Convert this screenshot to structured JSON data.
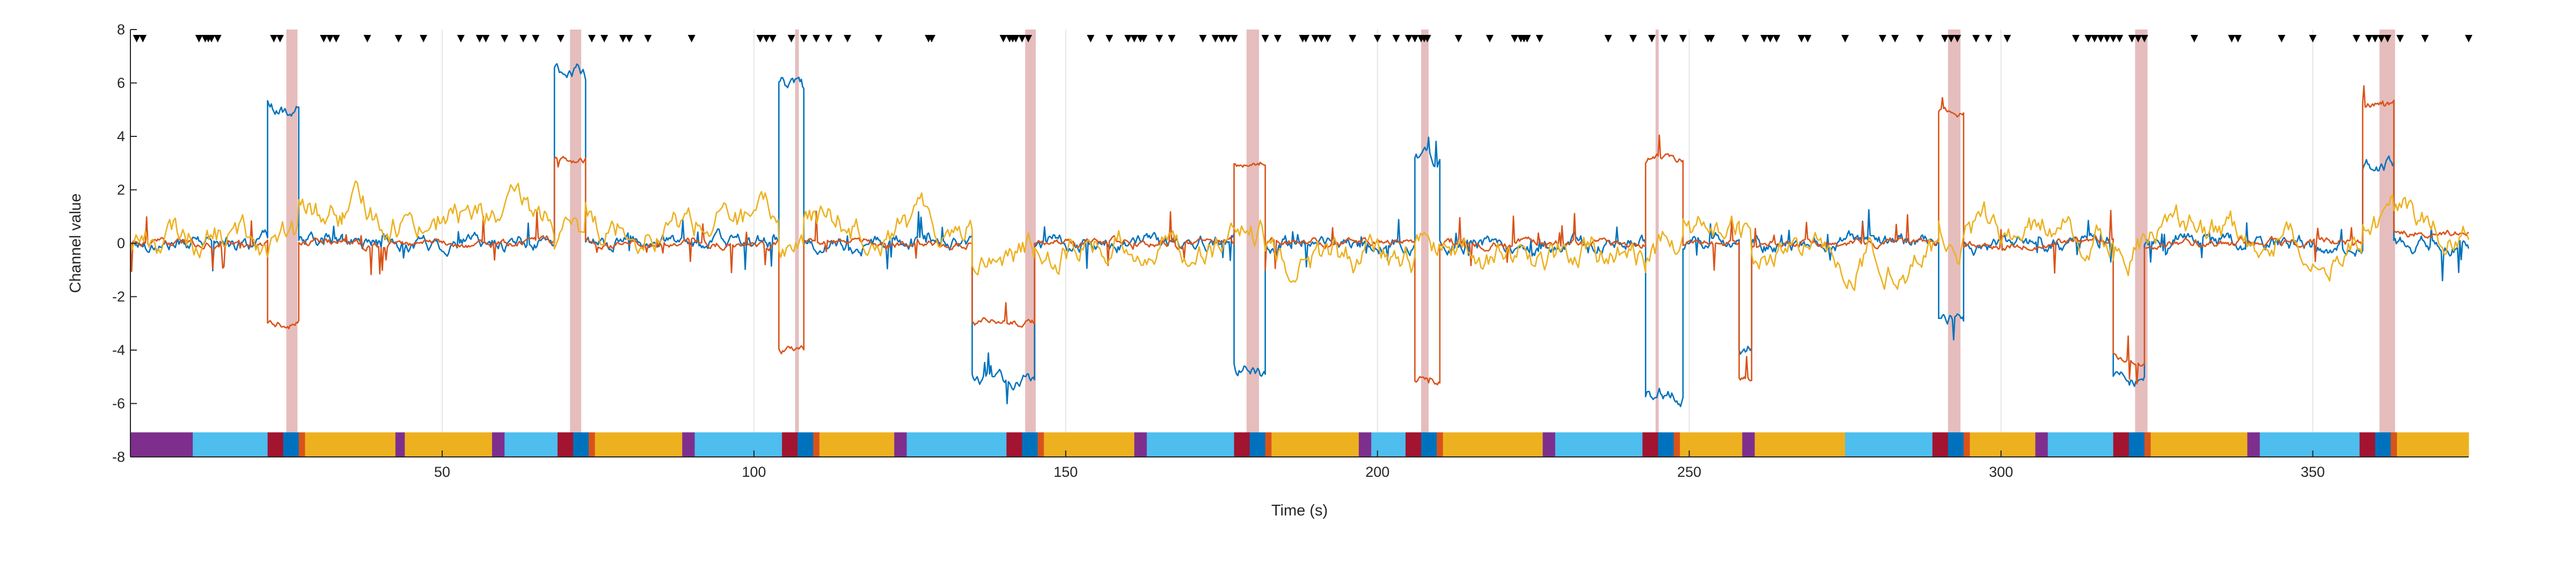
{
  "chart_data": {
    "type": "line",
    "title": "",
    "xlabel": "Time (s)",
    "ylabel": "Channel value",
    "xlim": [
      0,
      375
    ],
    "ylim": [
      -8,
      8
    ],
    "x_ticks": [
      50,
      100,
      150,
      200,
      250,
      300,
      350
    ],
    "y_ticks": [
      -8,
      -6,
      -4,
      -2,
      0,
      2,
      4,
      6,
      8
    ],
    "grid": "vertical lines at x ticks",
    "legend": "none",
    "colors": {
      "channel_1": "#0072BD",
      "channel_2": "#D95319",
      "channel_3": "#EDB120",
      "event_band": "#E2B2B2",
      "marker": "#000000"
    },
    "series": [
      {
        "color_key": "channel_1",
        "noise": 0.22,
        "segments": [
          [
            0,
            22,
            0
          ],
          [
            22,
            27,
            5
          ],
          [
            27,
            34,
            0
          ],
          [
            34,
            68,
            0
          ],
          [
            68,
            73,
            6.4
          ],
          [
            73,
            104,
            0
          ],
          [
            104,
            108,
            5.9
          ],
          [
            108,
            135,
            0
          ],
          [
            135,
            145,
            -5
          ],
          [
            145,
            177,
            0
          ],
          [
            177,
            182,
            -4.9
          ],
          [
            182,
            206,
            0
          ],
          [
            206,
            210,
            3.1
          ],
          [
            210,
            243,
            0
          ],
          [
            243,
            249,
            -5.6
          ],
          [
            249,
            258,
            0
          ],
          [
            258,
            260,
            -4
          ],
          [
            260,
            290,
            0
          ],
          [
            290,
            294,
            -2.9
          ],
          [
            294,
            318,
            0
          ],
          [
            318,
            323,
            -5.1
          ],
          [
            323,
            358,
            0
          ],
          [
            358,
            363,
            3
          ],
          [
            363,
            375,
            0
          ]
        ]
      },
      {
        "color_key": "channel_2",
        "noise": 0.12,
        "segments": [
          [
            0,
            22,
            0
          ],
          [
            22,
            27,
            -3
          ],
          [
            27,
            34,
            0
          ],
          [
            34,
            68,
            0
          ],
          [
            68,
            73,
            3.1
          ],
          [
            73,
            104,
            0
          ],
          [
            104,
            108,
            -4
          ],
          [
            108,
            135,
            0
          ],
          [
            135,
            145,
            -3
          ],
          [
            145,
            177,
            0
          ],
          [
            177,
            182,
            3
          ],
          [
            182,
            206,
            0
          ],
          [
            206,
            210,
            -5.1
          ],
          [
            210,
            243,
            0
          ],
          [
            243,
            249,
            3.2
          ],
          [
            249,
            258,
            0
          ],
          [
            258,
            260,
            -5
          ],
          [
            260,
            290,
            0
          ],
          [
            290,
            294,
            5
          ],
          [
            294,
            318,
            0
          ],
          [
            318,
            323,
            -4.3
          ],
          [
            323,
            358,
            0
          ],
          [
            358,
            363,
            5.2
          ],
          [
            363,
            375,
            0.4
          ]
        ]
      },
      {
        "color_key": "channel_3",
        "noise": 0.7,
        "segments": [
          [
            0,
            22,
            0.2
          ],
          [
            22,
            27,
            0
          ],
          [
            27,
            34,
            1
          ],
          [
            34,
            68,
            1
          ],
          [
            68,
            73,
            0
          ],
          [
            73,
            104,
            0.8
          ],
          [
            104,
            108,
            0
          ],
          [
            108,
            135,
            0.8
          ],
          [
            135,
            145,
            -0.3
          ],
          [
            145,
            177,
            0
          ],
          [
            177,
            182,
            0
          ],
          [
            182,
            206,
            -0.6
          ],
          [
            206,
            210,
            0
          ],
          [
            210,
            243,
            -0.5
          ],
          [
            243,
            249,
            0
          ],
          [
            249,
            258,
            0.3
          ],
          [
            258,
            260,
            0
          ],
          [
            260,
            290,
            -0.5
          ],
          [
            290,
            294,
            0
          ],
          [
            294,
            318,
            0.5
          ],
          [
            318,
            323,
            0
          ],
          [
            323,
            358,
            0.3
          ],
          [
            358,
            363,
            1
          ],
          [
            363,
            375,
            0.9
          ]
        ]
      }
    ],
    "event_bands": [
      [
        25,
        26.8
      ],
      [
        70.5,
        72.3
      ],
      [
        106.6,
        107.2
      ],
      [
        143.5,
        145.2
      ],
      [
        179,
        181
      ],
      [
        207,
        208.2
      ],
      [
        244.6,
        245.1
      ],
      [
        291.5,
        293.5
      ],
      [
        321.5,
        323.5
      ],
      [
        360.7,
        363.2
      ]
    ],
    "markers_x": [
      1,
      2,
      11,
      12,
      12.5,
      13,
      14,
      23,
      24,
      31,
      32,
      33,
      38,
      43,
      47,
      53,
      56,
      57,
      60,
      63,
      65,
      69,
      74,
      76,
      79,
      80,
      83,
      90,
      101,
      102,
      103,
      106,
      108,
      110,
      112,
      115,
      120,
      128,
      128.5,
      140,
      141,
      141.5,
      142,
      143,
      144,
      154,
      157,
      160,
      161,
      162,
      162.5,
      165,
      167,
      172,
      174,
      175,
      176,
      177,
      182,
      184,
      188,
      188.5,
      190,
      191,
      192,
      196,
      200,
      203,
      205,
      206,
      207,
      207.5,
      208,
      213,
      218,
      222,
      223,
      223.5,
      224,
      226,
      237,
      241,
      244,
      246,
      249,
      253,
      253.5,
      259,
      262,
      263,
      264,
      268,
      269,
      275,
      281,
      283,
      287,
      291,
      292,
      293,
      296,
      298,
      301,
      312,
      314,
      315,
      316,
      317,
      318,
      319,
      321,
      322,
      323,
      331,
      337,
      338,
      345,
      350,
      357,
      359,
      360,
      361,
      362,
      364,
      368,
      375
    ],
    "state_bar": {
      "colors": {
        "purple": "#7E2F8E",
        "light_blue": "#4DBEEE",
        "crimson": "#A2142F",
        "blue": "#0072BD",
        "orange": "#D95319",
        "gold": "#EDB120"
      },
      "segments": [
        [
          0,
          10,
          "purple"
        ],
        [
          10,
          22,
          "light_blue"
        ],
        [
          22,
          24.5,
          "crimson"
        ],
        [
          24.5,
          27,
          "blue"
        ],
        [
          27,
          28,
          "orange"
        ],
        [
          28,
          42.5,
          "gold"
        ],
        [
          42.5,
          44,
          "purple"
        ],
        [
          44,
          58,
          "gold"
        ],
        [
          58,
          60,
          "purple"
        ],
        [
          60,
          68.5,
          "light_blue"
        ],
        [
          68.5,
          71,
          "crimson"
        ],
        [
          71,
          73.5,
          "blue"
        ],
        [
          73.5,
          74.5,
          "orange"
        ],
        [
          74.5,
          88.5,
          "gold"
        ],
        [
          88.5,
          90.5,
          "purple"
        ],
        [
          90.5,
          104.5,
          "light_blue"
        ],
        [
          104.5,
          107,
          "crimson"
        ],
        [
          107,
          109.5,
          "blue"
        ],
        [
          109.5,
          110.5,
          "orange"
        ],
        [
          110.5,
          122.5,
          "gold"
        ],
        [
          122.5,
          124.5,
          "purple"
        ],
        [
          124.5,
          140.5,
          "light_blue"
        ],
        [
          140.5,
          143,
          "crimson"
        ],
        [
          143,
          145.5,
          "blue"
        ],
        [
          145.5,
          146.5,
          "orange"
        ],
        [
          146.5,
          161,
          "gold"
        ],
        [
          161,
          163,
          "purple"
        ],
        [
          163,
          177,
          "light_blue"
        ],
        [
          177,
          179.5,
          "crimson"
        ],
        [
          179.5,
          182,
          "blue"
        ],
        [
          182,
          183,
          "orange"
        ],
        [
          183,
          197,
          "gold"
        ],
        [
          197,
          199,
          "purple"
        ],
        [
          199,
          204.5,
          "light_blue"
        ],
        [
          204.5,
          207,
          "crimson"
        ],
        [
          207,
          209.5,
          "blue"
        ],
        [
          209.5,
          210.5,
          "orange"
        ],
        [
          210.5,
          226.5,
          "gold"
        ],
        [
          226.5,
          228.5,
          "purple"
        ],
        [
          228.5,
          242.5,
          "light_blue"
        ],
        [
          242.5,
          245,
          "crimson"
        ],
        [
          245,
          247.5,
          "blue"
        ],
        [
          247.5,
          248.5,
          "orange"
        ],
        [
          248.5,
          258.5,
          "gold"
        ],
        [
          258.5,
          260.5,
          "purple"
        ],
        [
          260.5,
          275,
          "gold"
        ],
        [
          275,
          289,
          "light_blue"
        ],
        [
          289,
          291.5,
          "crimson"
        ],
        [
          291.5,
          294,
          "blue"
        ],
        [
          294,
          295,
          "orange"
        ],
        [
          295,
          305.5,
          "gold"
        ],
        [
          305.5,
          307.5,
          "purple"
        ],
        [
          307.5,
          318,
          "light_blue"
        ],
        [
          318,
          320.5,
          "crimson"
        ],
        [
          320.5,
          323,
          "blue"
        ],
        [
          323,
          324,
          "orange"
        ],
        [
          324,
          339.5,
          "gold"
        ],
        [
          339.5,
          341.5,
          "purple"
        ],
        [
          341.5,
          357.5,
          "light_blue"
        ],
        [
          357.5,
          360,
          "crimson"
        ],
        [
          360,
          362.5,
          "blue"
        ],
        [
          362.5,
          363.5,
          "orange"
        ],
        [
          363.5,
          375,
          "gold"
        ]
      ]
    }
  }
}
